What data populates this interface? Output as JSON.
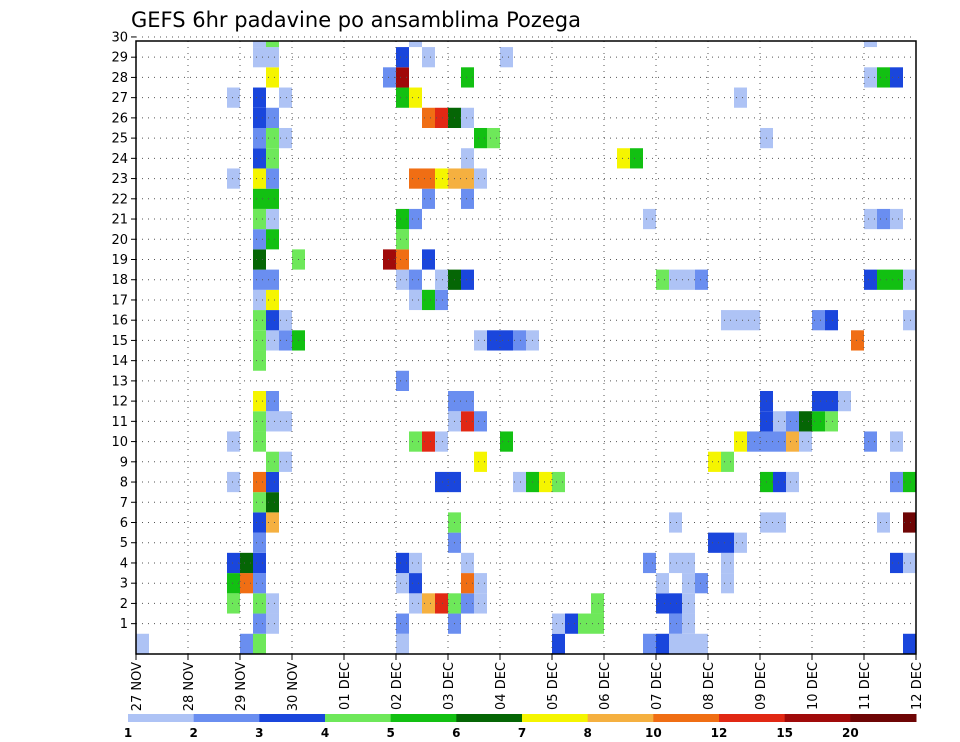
{
  "chart_data": {
    "type": "heatmap",
    "title": "GEFS 6hr padavine po ansamblima Pozega",
    "x_tick_labels": [
      "27 NOV",
      "28 NOV",
      "29 NOV",
      "30 NOV",
      "01 DEC",
      "02 DEC",
      "03 DEC",
      "04 DEC",
      "05 DEC",
      "06 DEC",
      "07 DEC",
      "08 DEC",
      "09 DEC",
      "10 DEC",
      "11 DEC",
      "12 DEC"
    ],
    "y_tick_labels": [
      "1",
      "2",
      "3",
      "4",
      "5",
      "6",
      "7",
      "8",
      "9",
      "10",
      "11",
      "12",
      "13",
      "14",
      "15",
      "16",
      "17",
      "18",
      "19",
      "20",
      "21",
      "22",
      "23",
      "24",
      "25",
      "26",
      "27",
      "28",
      "29",
      "30"
    ],
    "x_range_days": [
      0,
      15
    ],
    "y_range": [
      0,
      30
    ],
    "grid": true,
    "legend": {
      "position": "bottom",
      "labels": [
        "1",
        "2",
        "3",
        "4",
        "5",
        "6",
        "7",
        "8",
        "10",
        "12",
        "15",
        "20"
      ],
      "colors": [
        "#aec3f5",
        "#6a8ef0",
        "#1a46dc",
        "#6ee85a",
        "#12c012",
        "#056605",
        "#f5f500",
        "#f5b040",
        "#f06e14",
        "#e12814",
        "#a00a0a",
        "#6e0505"
      ]
    },
    "cells_format": "[x_start_day, member_y, class_index] where x_start_day counts days from 27 NOV 00Z, each cell spans 0.25 day, class_index refers to legend.colors",
    "cells": [
      [
        0,
        0,
        0
      ],
      [
        2.0,
        0,
        1
      ],
      [
        2.25,
        0,
        3
      ],
      [
        5.0,
        0,
        0
      ],
      [
        8.0,
        0,
        2
      ],
      [
        8.0,
        1,
        0
      ],
      [
        8.25,
        1,
        2
      ],
      [
        8.5,
        1,
        3
      ],
      [
        8.75,
        1,
        3
      ],
      [
        9.75,
        0,
        1
      ],
      [
        10.0,
        0,
        2
      ],
      [
        10.25,
        0,
        0
      ],
      [
        10.5,
        0,
        0
      ],
      [
        10.75,
        0,
        0
      ],
      [
        14.75,
        0,
        2
      ],
      [
        2.25,
        1,
        1
      ],
      [
        2.5,
        1,
        0
      ],
      [
        5.0,
        1,
        1
      ],
      [
        6.0,
        1,
        1
      ],
      [
        8.75,
        2,
        3
      ],
      [
        10.0,
        2,
        2
      ],
      [
        10.25,
        2,
        2
      ],
      [
        10.5,
        2,
        0
      ],
      [
        1.75,
        2,
        3
      ],
      [
        2.25,
        2,
        3
      ],
      [
        2.5,
        2,
        0
      ],
      [
        5.25,
        2,
        0
      ],
      [
        5.5,
        2,
        7
      ],
      [
        5.75,
        2,
        9
      ],
      [
        6.0,
        2,
        3
      ],
      [
        6.25,
        2,
        1
      ],
      [
        6.5,
        2,
        0
      ],
      [
        10.25,
        1,
        1
      ],
      [
        10.5,
        1,
        0
      ],
      [
        1.75,
        3,
        4
      ],
      [
        2.0,
        3,
        8
      ],
      [
        2.25,
        3,
        1
      ],
      [
        5.0,
        3,
        0
      ],
      [
        5.25,
        3,
        2
      ],
      [
        6.25,
        3,
        8
      ],
      [
        6.5,
        3,
        0
      ],
      [
        10.0,
        3,
        0
      ],
      [
        10.5,
        3,
        0
      ],
      [
        10.75,
        3,
        1
      ],
      [
        11.25,
        3,
        0
      ],
      [
        1.75,
        4,
        2
      ],
      [
        2.0,
        4,
        5
      ],
      [
        2.25,
        4,
        2
      ],
      [
        5.0,
        4,
        2
      ],
      [
        5.25,
        4,
        0
      ],
      [
        6.25,
        4,
        0
      ],
      [
        9.75,
        4,
        1
      ],
      [
        10.25,
        4,
        0
      ],
      [
        10.5,
        4,
        0
      ],
      [
        11.25,
        4,
        0
      ],
      [
        14.5,
        4,
        2
      ],
      [
        14.75,
        4,
        0
      ],
      [
        2.25,
        5,
        1
      ],
      [
        6.0,
        5,
        1
      ],
      [
        11.0,
        5,
        2
      ],
      [
        11.25,
        5,
        2
      ],
      [
        11.5,
        5,
        0
      ],
      [
        2.25,
        6,
        2
      ],
      [
        2.5,
        6,
        7
      ],
      [
        6.0,
        6,
        3
      ],
      [
        10.25,
        6,
        0
      ],
      [
        12.0,
        6,
        0
      ],
      [
        12.25,
        6,
        0
      ],
      [
        14.25,
        6,
        0
      ],
      [
        14.75,
        6,
        11
      ],
      [
        2.25,
        7,
        3
      ],
      [
        2.5,
        7,
        5
      ],
      [
        1.75,
        8,
        0
      ],
      [
        2.25,
        8,
        8
      ],
      [
        2.5,
        8,
        2
      ],
      [
        5.75,
        8,
        2
      ],
      [
        6.0,
        8,
        2
      ],
      [
        7.25,
        8,
        0
      ],
      [
        7.5,
        8,
        4
      ],
      [
        7.75,
        8,
        6
      ],
      [
        8.0,
        8,
        3
      ],
      [
        12.0,
        8,
        4
      ],
      [
        12.25,
        8,
        2
      ],
      [
        12.5,
        8,
        0
      ],
      [
        14.5,
        8,
        1
      ],
      [
        14.75,
        8,
        4
      ],
      [
        2.5,
        9,
        3
      ],
      [
        2.75,
        9,
        0
      ],
      [
        6.5,
        9,
        6
      ],
      [
        11.0,
        9,
        6
      ],
      [
        11.25,
        9,
        3
      ],
      [
        1.75,
        10,
        0
      ],
      [
        2.25,
        10,
        3
      ],
      [
        5.25,
        10,
        3
      ],
      [
        5.5,
        10,
        9
      ],
      [
        5.75,
        10,
        0
      ],
      [
        7.0,
        10,
        4
      ],
      [
        11.5,
        10,
        6
      ],
      [
        11.75,
        10,
        1
      ],
      [
        12.0,
        10,
        1
      ],
      [
        12.25,
        10,
        1
      ],
      [
        12.5,
        10,
        7
      ],
      [
        12.75,
        10,
        0
      ],
      [
        14.0,
        10,
        1
      ],
      [
        14.5,
        10,
        0
      ],
      [
        2.25,
        11,
        3
      ],
      [
        2.5,
        11,
        0
      ],
      [
        2.75,
        11,
        0
      ],
      [
        6.0,
        11,
        0
      ],
      [
        6.25,
        11,
        9
      ],
      [
        6.5,
        11,
        1
      ],
      [
        12.0,
        11,
        2
      ],
      [
        12.25,
        11,
        0
      ],
      [
        12.5,
        11,
        1
      ],
      [
        12.75,
        11,
        5
      ],
      [
        13.0,
        11,
        4
      ],
      [
        13.25,
        11,
        3
      ],
      [
        2.25,
        12,
        6
      ],
      [
        2.5,
        12,
        1
      ],
      [
        6.0,
        12,
        1
      ],
      [
        6.25,
        12,
        1
      ],
      [
        12.0,
        12,
        2
      ],
      [
        13.0,
        12,
        2
      ],
      [
        13.25,
        12,
        2
      ],
      [
        13.5,
        12,
        0
      ],
      [
        5.0,
        13,
        1
      ],
      [
        2.25,
        14,
        3
      ],
      [
        2.25,
        15,
        3
      ],
      [
        2.5,
        15,
        0
      ],
      [
        2.75,
        15,
        1
      ],
      [
        3.0,
        15,
        4
      ],
      [
        6.5,
        15,
        0
      ],
      [
        6.75,
        15,
        2
      ],
      [
        7.0,
        15,
        2
      ],
      [
        7.25,
        15,
        1
      ],
      [
        7.5,
        15,
        0
      ],
      [
        13.75,
        15,
        8
      ],
      [
        2.25,
        16,
        3
      ],
      [
        2.5,
        16,
        2
      ],
      [
        2.75,
        16,
        0
      ],
      [
        11.25,
        16,
        0
      ],
      [
        11.5,
        16,
        0
      ],
      [
        11.75,
        16,
        0
      ],
      [
        13.0,
        16,
        1
      ],
      [
        13.25,
        16,
        2
      ],
      [
        14.75,
        16,
        0
      ],
      [
        2.25,
        17,
        0
      ],
      [
        2.5,
        17,
        6
      ],
      [
        5.25,
        17,
        0
      ],
      [
        5.5,
        17,
        4
      ],
      [
        5.75,
        17,
        1
      ],
      [
        2.25,
        18,
        1
      ],
      [
        2.5,
        18,
        1
      ],
      [
        5.0,
        18,
        0
      ],
      [
        5.25,
        18,
        1
      ],
      [
        5.75,
        18,
        0
      ],
      [
        6.0,
        18,
        5
      ],
      [
        6.25,
        18,
        2
      ],
      [
        10.0,
        18,
        3
      ],
      [
        10.25,
        18,
        0
      ],
      [
        10.5,
        18,
        0
      ],
      [
        10.75,
        18,
        1
      ],
      [
        14.0,
        18,
        2
      ],
      [
        14.25,
        18,
        4
      ],
      [
        14.5,
        18,
        4
      ],
      [
        14.75,
        18,
        0
      ],
      [
        2.25,
        19,
        5
      ],
      [
        3.0,
        19,
        3
      ],
      [
        4.75,
        19,
        10
      ],
      [
        5.0,
        19,
        8
      ],
      [
        5.5,
        19,
        2
      ],
      [
        2.25,
        20,
        1
      ],
      [
        2.5,
        20,
        4
      ],
      [
        5.0,
        20,
        3
      ],
      [
        2.25,
        21,
        3
      ],
      [
        2.5,
        21,
        0
      ],
      [
        5.0,
        21,
        4
      ],
      [
        5.25,
        21,
        1
      ],
      [
        9.75,
        21,
        0
      ],
      [
        14.0,
        21,
        0
      ],
      [
        14.25,
        21,
        1
      ],
      [
        14.5,
        21,
        0
      ],
      [
        2.25,
        22,
        4
      ],
      [
        2.5,
        22,
        4
      ],
      [
        5.5,
        22,
        1
      ],
      [
        6.25,
        22,
        1
      ],
      [
        1.75,
        23,
        0
      ],
      [
        2.25,
        23,
        6
      ],
      [
        2.5,
        23,
        1
      ],
      [
        5.25,
        23,
        8
      ],
      [
        5.5,
        23,
        8
      ],
      [
        5.75,
        23,
        6
      ],
      [
        6.0,
        23,
        7
      ],
      [
        6.25,
        23,
        7
      ],
      [
        6.5,
        23,
        0
      ],
      [
        2.25,
        24,
        2
      ],
      [
        2.5,
        24,
        3
      ],
      [
        6.25,
        24,
        0
      ],
      [
        9.25,
        24,
        6
      ],
      [
        9.5,
        24,
        4
      ],
      [
        2.25,
        25,
        1
      ],
      [
        2.5,
        25,
        3
      ],
      [
        2.75,
        25,
        0
      ],
      [
        6.5,
        25,
        4
      ],
      [
        6.75,
        25,
        3
      ],
      [
        12.0,
        25,
        0
      ],
      [
        2.25,
        26,
        2
      ],
      [
        2.5,
        26,
        1
      ],
      [
        5.5,
        26,
        8
      ],
      [
        5.75,
        26,
        9
      ],
      [
        6.0,
        26,
        5
      ],
      [
        6.25,
        26,
        0
      ],
      [
        1.75,
        27,
        0
      ],
      [
        2.25,
        27,
        2
      ],
      [
        2.75,
        27,
        0
      ],
      [
        5.0,
        27,
        4
      ],
      [
        5.25,
        27,
        6
      ],
      [
        11.5,
        27,
        0
      ],
      [
        2.5,
        28,
        6
      ],
      [
        4.75,
        28,
        1
      ],
      [
        5.0,
        28,
        10
      ],
      [
        6.25,
        28,
        4
      ],
      [
        14.0,
        28,
        0
      ],
      [
        14.25,
        28,
        4
      ],
      [
        14.5,
        28,
        2
      ],
      [
        2.25,
        29,
        0
      ],
      [
        2.5,
        29,
        0
      ],
      [
        5.0,
        29,
        2
      ],
      [
        5.5,
        29,
        0
      ],
      [
        7.0,
        29,
        0
      ],
      [
        2.25,
        30,
        0
      ],
      [
        2.5,
        30,
        3
      ],
      [
        5.25,
        30,
        0
      ],
      [
        14.0,
        30,
        0
      ]
    ]
  }
}
